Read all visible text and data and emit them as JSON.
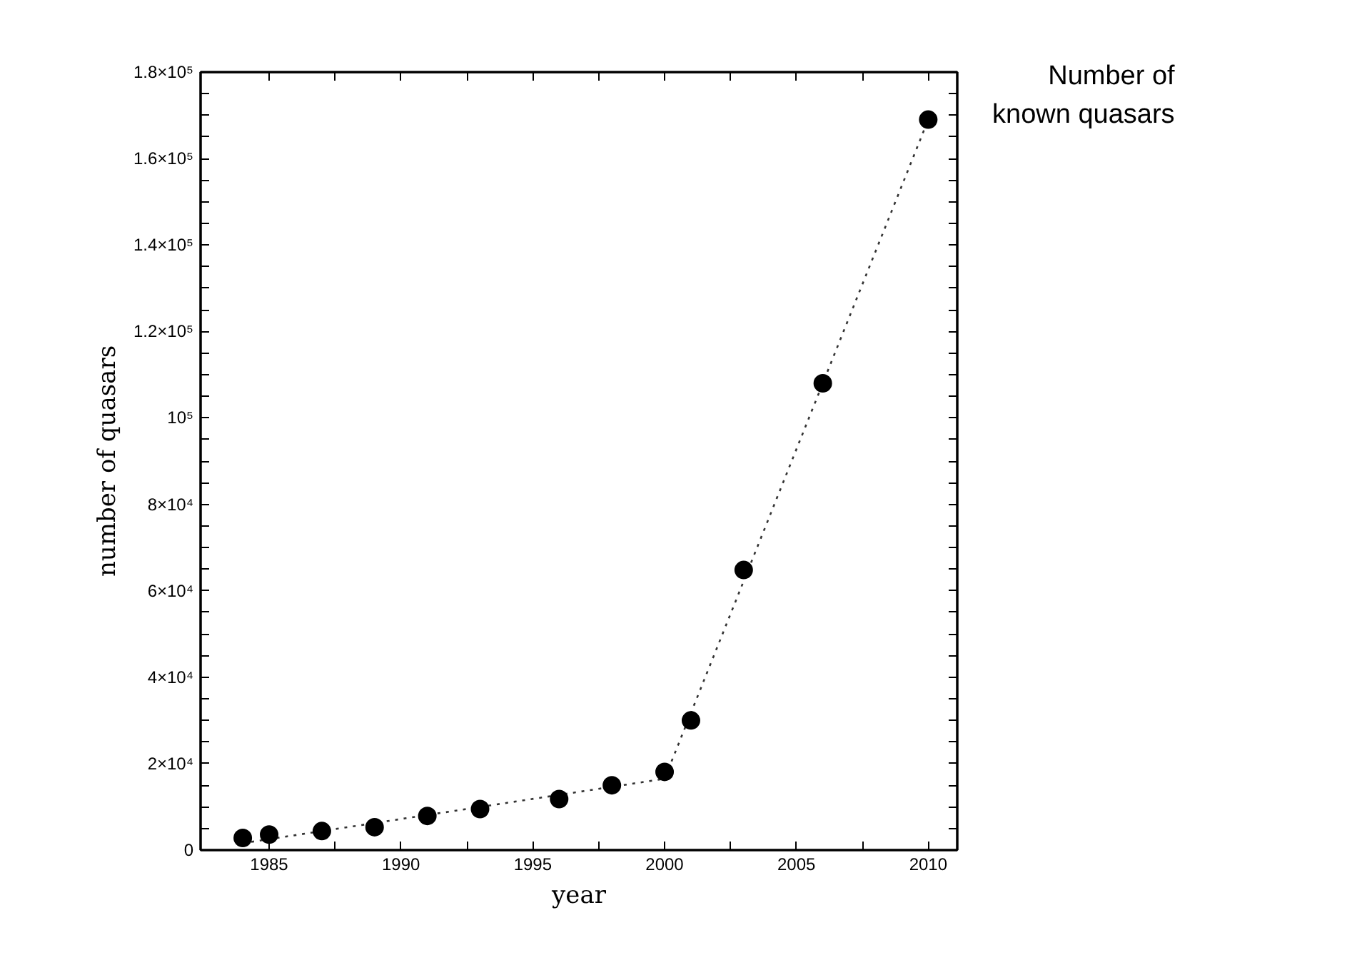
{
  "chart_data": {
    "type": "scatter",
    "title": "Number of\nknown quasars",
    "xlabel": "year",
    "ylabel": "number of quasars",
    "xlim": [
      1982.4,
      2011.1
    ],
    "ylim": [
      0,
      180000
    ],
    "xticks": [
      {
        "value": 1985,
        "label": "1985"
      },
      {
        "value": 1987.5,
        "label": null
      },
      {
        "value": 1990,
        "label": "1990"
      },
      {
        "value": 1992.5,
        "label": null
      },
      {
        "value": 1995,
        "label": "1995"
      },
      {
        "value": 1997.5,
        "label": null
      },
      {
        "value": 2000,
        "label": "2000"
      },
      {
        "value": 2002.5,
        "label": null
      },
      {
        "value": 2005,
        "label": "2005"
      },
      {
        "value": 2007.5,
        "label": null
      },
      {
        "value": 2010,
        "label": "2010"
      }
    ],
    "yticks": [
      {
        "value": 0,
        "label": "0"
      },
      {
        "value": 5000,
        "label": null
      },
      {
        "value": 10000,
        "label": null
      },
      {
        "value": 15000,
        "label": null
      },
      {
        "value": 20000,
        "label": "2×10⁴"
      },
      {
        "value": 25000,
        "label": null
      },
      {
        "value": 30000,
        "label": null
      },
      {
        "value": 35000,
        "label": null
      },
      {
        "value": 40000,
        "label": "4×10⁴"
      },
      {
        "value": 45000,
        "label": null
      },
      {
        "value": 50000,
        "label": null
      },
      {
        "value": 55000,
        "label": null
      },
      {
        "value": 60000,
        "label": "6×10⁴"
      },
      {
        "value": 65000,
        "label": null
      },
      {
        "value": 70000,
        "label": null
      },
      {
        "value": 75000,
        "label": null
      },
      {
        "value": 80000,
        "label": "8×10⁴"
      },
      {
        "value": 85000,
        "label": null
      },
      {
        "value": 90000,
        "label": null
      },
      {
        "value": 95000,
        "label": null
      },
      {
        "value": 100000,
        "label": "10⁵"
      },
      {
        "value": 105000,
        "label": null
      },
      {
        "value": 110000,
        "label": null
      },
      {
        "value": 115000,
        "label": null
      },
      {
        "value": 120000,
        "label": "1.2×10⁵"
      },
      {
        "value": 125000,
        "label": null
      },
      {
        "value": 130000,
        "label": null
      },
      {
        "value": 135000,
        "label": null
      },
      {
        "value": 140000,
        "label": "1.4×10⁵"
      },
      {
        "value": 145000,
        "label": null
      },
      {
        "value": 150000,
        "label": null
      },
      {
        "value": 155000,
        "label": null
      },
      {
        "value": 160000,
        "label": "1.6×10⁵"
      },
      {
        "value": 165000,
        "label": null
      },
      {
        "value": 170000,
        "label": null
      },
      {
        "value": 175000,
        "label": null
      },
      {
        "value": 180000,
        "label": "1.8×10⁵"
      }
    ],
    "grid": false,
    "series": [
      {
        "type": "line",
        "color": "#333333",
        "line_style": "dotted",
        "marker": "none",
        "x": [
          1984,
          2000,
          2010
        ],
        "values": [
          1600,
          16500,
          169000
        ]
      },
      {
        "color": "#000000",
        "marker": "circle",
        "x": [
          1984,
          1985,
          1987,
          1989,
          1991,
          1993,
          1996,
          1998,
          2000,
          2001,
          2003,
          2006,
          2010
        ],
        "values": [
          2800,
          3600,
          4400,
          5300,
          7900,
          9500,
          11800,
          15000,
          18100,
          30000,
          64800,
          108000,
          169000
        ]
      }
    ]
  }
}
